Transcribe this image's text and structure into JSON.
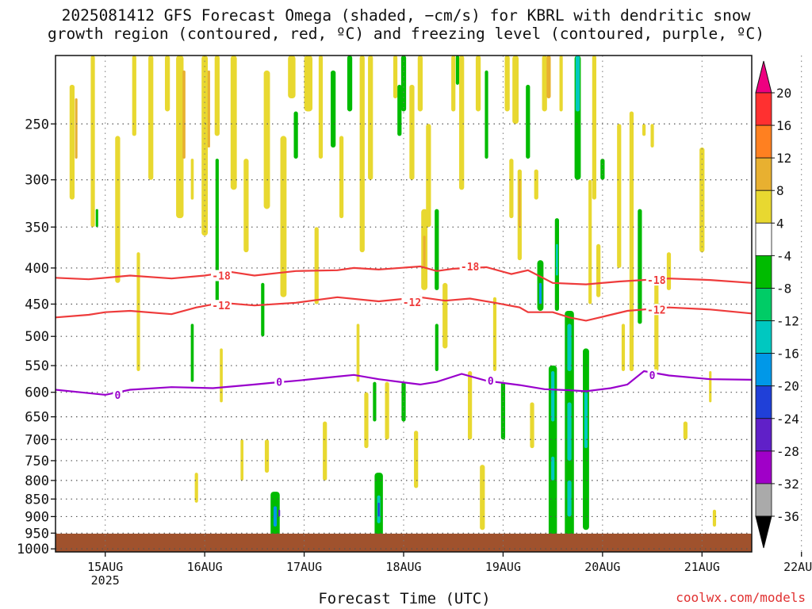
{
  "title_line1": "2025081412 GFS Forecast Omega (shaded, −cm/s) for KBRL with dendritic snow",
  "title_line2": "growth region (contoured, red, ºC) and freezing level (contoured, purple, ºC)",
  "credit": "coolwx.com/models",
  "chart_data": {
    "type": "heatmap",
    "title": "2025081412 GFS Forecast Omega (shaded, −cm/s) for KBRL with dendritic snow growth region (contoured, red, ºC) and freezing level (contoured, purple, ºC)",
    "xlabel": "Forecast Time (UTC)",
    "ylabel": "",
    "x_ticks": [
      "15AUG",
      "16AUG",
      "17AUG",
      "18AUG",
      "19AUG",
      "20AUG",
      "21AUG",
      "22AUG"
    ],
    "x_tick_sublabel": "2025",
    "x_range_hours": [
      12,
      180
    ],
    "y_ticks": [
      250,
      300,
      350,
      400,
      450,
      500,
      550,
      600,
      650,
      700,
      750,
      800,
      850,
      900,
      950,
      1000
    ],
    "y_range_hPa": [
      200,
      1010
    ],
    "y_scale": "log",
    "grid": true,
    "colorbar": {
      "labels": [
        20,
        16,
        12,
        8,
        4,
        -4,
        -8,
        -12,
        -16,
        -20,
        -24,
        -28,
        -32,
        -36
      ],
      "colors": [
        "#ee0080",
        "#ff3030",
        "#ff8020",
        "#e8b030",
        "#e8d830",
        "#ffffff",
        "#00bb00",
        "#00cc66",
        "#00c8c0",
        "#0098e8",
        "#2040d8",
        "#6020c8",
        "#a000c8",
        "#aaaaaa",
        "#000000"
      ]
    },
    "contour_lines": [
      {
        "label": "-18",
        "color": "#ee3b3b",
        "x": [
          12,
          20,
          30,
          40,
          48,
          54,
          60,
          70,
          80,
          84,
          90,
          100,
          104,
          108,
          116,
          122,
          126,
          132,
          140,
          148,
          160,
          170,
          180
        ],
        "y": [
          413,
          415,
          410,
          414,
          410,
          405,
          410,
          404,
          403,
          400,
          402,
          398,
          404,
          401,
          399,
          408,
          403,
          420,
          422,
          418,
          414,
          416,
          420
        ]
      },
      {
        "label": "-12",
        "color": "#ee3b3b",
        "x": [
          12,
          20,
          24,
          30,
          40,
          46,
          52,
          60,
          70,
          80,
          90,
          100,
          106,
          112,
          118,
          124,
          126,
          132,
          136,
          140,
          150,
          160,
          170,
          180
        ],
        "y": [
          470,
          466,
          462,
          460,
          465,
          455,
          448,
          452,
          448,
          440,
          446,
          440,
          445,
          442,
          448,
          455,
          462,
          462,
          470,
          475,
          460,
          455,
          458,
          464
        ]
      },
      {
        "label": "0",
        "color": "#9900cc",
        "x": [
          12,
          18,
          24,
          30,
          40,
          50,
          60,
          64,
          70,
          80,
          84,
          90,
          100,
          104,
          110,
          116,
          120,
          124,
          130,
          136,
          140,
          146,
          150,
          154,
          160,
          170,
          180
        ],
        "y": [
          595,
          600,
          605,
          595,
          590,
          592,
          585,
          582,
          578,
          570,
          567,
          575,
          585,
          580,
          565,
          578,
          582,
          586,
          594,
          596,
          598,
          592,
          585,
          560,
          568,
          575,
          576
        ]
      }
    ],
    "contour_labels": [
      {
        "text": "-18",
        "x": 52,
        "y": 410
      },
      {
        "text": "-18",
        "x": 112,
        "y": 398
      },
      {
        "text": "-18",
        "x": 157,
        "y": 416
      },
      {
        "text": "-12",
        "x": 52,
        "y": 452
      },
      {
        "text": "-12",
        "x": 98,
        "y": 447
      },
      {
        "text": "-12",
        "x": 157,
        "y": 458
      },
      {
        "text": "0",
        "x": 27,
        "y": 605
      },
      {
        "text": "0",
        "x": 66,
        "y": 580
      },
      {
        "text": "0",
        "x": 117,
        "y": 578
      },
      {
        "text": "0",
        "x": 156,
        "y": 567
      }
    ],
    "omega_cells": [
      {
        "x": 16,
        "p0": 220,
        "p1": 320,
        "w": 1.2,
        "v": 5
      },
      {
        "x": 17,
        "p0": 230,
        "p1": 280,
        "w": 0.6,
        "v": 9
      },
      {
        "x": 21,
        "p0": 200,
        "p1": 350,
        "w": 1.0,
        "v": 5
      },
      {
        "x": 22,
        "p0": 330,
        "p1": 350,
        "w": 0.6,
        "v": -6
      },
      {
        "x": 27,
        "p0": 260,
        "p1": 420,
        "w": 1.2,
        "v": 5
      },
      {
        "x": 31,
        "p0": 200,
        "p1": 260,
        "w": 1.0,
        "v": 5
      },
      {
        "x": 32,
        "p0": 380,
        "p1": 560,
        "w": 0.8,
        "v": 5
      },
      {
        "x": 35,
        "p0": 200,
        "p1": 300,
        "w": 1.2,
        "v": 5
      },
      {
        "x": 39,
        "p0": 200,
        "p1": 240,
        "w": 1.2,
        "v": 6
      },
      {
        "x": 42,
        "p0": 200,
        "p1": 340,
        "w": 1.8,
        "v": 6
      },
      {
        "x": 43,
        "p0": 210,
        "p1": 280,
        "w": 0.7,
        "v": 10
      },
      {
        "x": 45,
        "p0": 280,
        "p1": 320,
        "w": 0.7,
        "v": 5
      },
      {
        "x": 45,
        "p0": 480,
        "p1": 580,
        "w": 0.7,
        "v": -6
      },
      {
        "x": 46,
        "p0": 780,
        "p1": 860,
        "w": 0.8,
        "v": 5
      },
      {
        "x": 48,
        "p0": 200,
        "p1": 360,
        "w": 1.5,
        "v": 6
      },
      {
        "x": 49,
        "p0": 210,
        "p1": 270,
        "w": 0.6,
        "v": 10
      },
      {
        "x": 51,
        "p0": 200,
        "p1": 260,
        "w": 1.2,
        "v": 5
      },
      {
        "x": 51,
        "p0": 280,
        "p1": 450,
        "w": 0.8,
        "v": -6
      },
      {
        "x": 52,
        "p0": 520,
        "p1": 620,
        "w": 0.7,
        "v": 5
      },
      {
        "x": 55,
        "p0": 200,
        "p1": 310,
        "w": 1.5,
        "v": 5
      },
      {
        "x": 57,
        "p0": 700,
        "p1": 800,
        "w": 0.7,
        "v": 5
      },
      {
        "x": 58,
        "p0": 280,
        "p1": 380,
        "w": 1.2,
        "v": 5
      },
      {
        "x": 62,
        "p0": 420,
        "p1": 500,
        "w": 0.8,
        "v": -6
      },
      {
        "x": 63,
        "p0": 210,
        "p1": 330,
        "w": 1.5,
        "v": 5
      },
      {
        "x": 63,
        "p0": 700,
        "p1": 780,
        "w": 1.0,
        "v": 5
      },
      {
        "x": 65,
        "p0": 830,
        "p1": 960,
        "w": 2.2,
        "v": -7
      },
      {
        "x": 65,
        "p0": 870,
        "p1": 930,
        "w": 0.8,
        "v": -16
      },
      {
        "x": 66,
        "p0": 880,
        "p1": 900,
        "w": 0.4,
        "v": -25
      },
      {
        "x": 67,
        "p0": 260,
        "p1": 440,
        "w": 1.5,
        "v": 5
      },
      {
        "x": 69,
        "p0": 200,
        "p1": 230,
        "w": 1.8,
        "v": 6
      },
      {
        "x": 70,
        "p0": 240,
        "p1": 280,
        "w": 1.0,
        "v": -6
      },
      {
        "x": 73,
        "p0": 200,
        "p1": 240,
        "w": 2.0,
        "v": 5
      },
      {
        "x": 75,
        "p0": 350,
        "p1": 450,
        "w": 1.0,
        "v": 5
      },
      {
        "x": 76,
        "p0": 200,
        "p1": 280,
        "w": 1.0,
        "v": 5
      },
      {
        "x": 77,
        "p0": 660,
        "p1": 800,
        "w": 1.0,
        "v": 5
      },
      {
        "x": 79,
        "p0": 210,
        "p1": 270,
        "w": 1.2,
        "v": -6
      },
      {
        "x": 81,
        "p0": 260,
        "p1": 340,
        "w": 1.0,
        "v": 5
      },
      {
        "x": 83,
        "p0": 200,
        "p1": 240,
        "w": 1.2,
        "v": -6
      },
      {
        "x": 85,
        "p0": 480,
        "p1": 580,
        "w": 0.7,
        "v": 5
      },
      {
        "x": 86,
        "p0": 200,
        "p1": 380,
        "w": 1.2,
        "v": 5
      },
      {
        "x": 87,
        "p0": 600,
        "p1": 720,
        "w": 1.0,
        "v": 5
      },
      {
        "x": 88,
        "p0": 200,
        "p1": 300,
        "w": 1.2,
        "v": 6
      },
      {
        "x": 89,
        "p0": 580,
        "p1": 660,
        "w": 0.8,
        "v": -6
      },
      {
        "x": 90,
        "p0": 780,
        "p1": 960,
        "w": 2.0,
        "v": -7
      },
      {
        "x": 90,
        "p0": 840,
        "p1": 920,
        "w": 0.8,
        "v": -14
      },
      {
        "x": 90,
        "p0": 860,
        "p1": 900,
        "w": 0.4,
        "v": -22
      },
      {
        "x": 92,
        "p0": 580,
        "p1": 700,
        "w": 1.0,
        "v": 5
      },
      {
        "x": 94,
        "p0": 200,
        "p1": 230,
        "w": 1.0,
        "v": 5
      },
      {
        "x": 95,
        "p0": 220,
        "p1": 260,
        "w": 1.0,
        "v": -6
      },
      {
        "x": 96,
        "p0": 200,
        "p1": 240,
        "w": 1.2,
        "v": -6
      },
      {
        "x": 96,
        "p0": 580,
        "p1": 660,
        "w": 1.0,
        "v": -6
      },
      {
        "x": 98,
        "p0": 220,
        "p1": 300,
        "w": 1.2,
        "v": 5
      },
      {
        "x": 99,
        "p0": 680,
        "p1": 820,
        "w": 1.0,
        "v": 5
      },
      {
        "x": 100,
        "p0": 200,
        "p1": 240,
        "w": 1.2,
        "v": 6
      },
      {
        "x": 101,
        "p0": 330,
        "p1": 430,
        "w": 1.5,
        "v": 6
      },
      {
        "x": 101,
        "p0": 360,
        "p1": 400,
        "w": 0.6,
        "v": 10
      },
      {
        "x": 102,
        "p0": 250,
        "p1": 350,
        "w": 1.2,
        "v": 5
      },
      {
        "x": 104,
        "p0": 330,
        "p1": 430,
        "w": 1.0,
        "v": -6
      },
      {
        "x": 104,
        "p0": 480,
        "p1": 560,
        "w": 0.8,
        "v": -6
      },
      {
        "x": 106,
        "p0": 420,
        "p1": 520,
        "w": 1.2,
        "v": 5
      },
      {
        "x": 108,
        "p0": 200,
        "p1": 240,
        "w": 1.0,
        "v": 6
      },
      {
        "x": 109,
        "p0": 200,
        "p1": 220,
        "w": 0.8,
        "v": -6
      },
      {
        "x": 110,
        "p0": 200,
        "p1": 310,
        "w": 1.2,
        "v": 6
      },
      {
        "x": 112,
        "p0": 560,
        "p1": 700,
        "w": 1.0,
        "v": 5
      },
      {
        "x": 114,
        "p0": 200,
        "p1": 240,
        "w": 1.2,
        "v": 5
      },
      {
        "x": 115,
        "p0": 760,
        "p1": 940,
        "w": 1.2,
        "v": 5
      },
      {
        "x": 116,
        "p0": 210,
        "p1": 280,
        "w": 0.8,
        "v": -6
      },
      {
        "x": 118,
        "p0": 440,
        "p1": 560,
        "w": 0.8,
        "v": 5
      },
      {
        "x": 120,
        "p0": 580,
        "p1": 700,
        "w": 1.0,
        "v": -6
      },
      {
        "x": 121,
        "p0": 200,
        "p1": 240,
        "w": 1.2,
        "v": 5
      },
      {
        "x": 122,
        "p0": 280,
        "p1": 340,
        "w": 1.0,
        "v": 5
      },
      {
        "x": 123,
        "p0": 200,
        "p1": 250,
        "w": 1.5,
        "v": 6
      },
      {
        "x": 124,
        "p0": 290,
        "p1": 390,
        "w": 1.0,
        "v": 6
      },
      {
        "x": 124,
        "p0": 300,
        "p1": 350,
        "w": 0.5,
        "v": 10
      },
      {
        "x": 126,
        "p0": 220,
        "p1": 280,
        "w": 1.0,
        "v": -6
      },
      {
        "x": 127,
        "p0": 620,
        "p1": 720,
        "w": 1.0,
        "v": 5
      },
      {
        "x": 128,
        "p0": 290,
        "p1": 320,
        "w": 1.0,
        "v": 5
      },
      {
        "x": 129,
        "p0": 390,
        "p1": 460,
        "w": 1.5,
        "v": -7
      },
      {
        "x": 129,
        "p0": 420,
        "p1": 450,
        "w": 0.6,
        "v": -16
      },
      {
        "x": 130,
        "p0": 200,
        "p1": 240,
        "w": 1.2,
        "v": 6
      },
      {
        "x": 131,
        "p0": 200,
        "p1": 230,
        "w": 1.0,
        "v": 10
      },
      {
        "x": 132,
        "p0": 550,
        "p1": 960,
        "w": 2.0,
        "v": -7
      },
      {
        "x": 132,
        "p0": 560,
        "p1": 660,
        "w": 0.8,
        "v": -14
      },
      {
        "x": 132,
        "p0": 740,
        "p1": 800,
        "w": 0.8,
        "v": -14
      },
      {
        "x": 133,
        "p0": 340,
        "p1": 460,
        "w": 1.0,
        "v": -6
      },
      {
        "x": 133,
        "p0": 370,
        "p1": 410,
        "w": 0.5,
        "v": -14
      },
      {
        "x": 134,
        "p0": 200,
        "p1": 240,
        "w": 0.8,
        "v": 5
      },
      {
        "x": 136,
        "p0": 460,
        "p1": 960,
        "w": 2.2,
        "v": -7
      },
      {
        "x": 136,
        "p0": 480,
        "p1": 560,
        "w": 1.0,
        "v": -14
      },
      {
        "x": 136,
        "p0": 620,
        "p1": 750,
        "w": 1.0,
        "v": -14
      },
      {
        "x": 136,
        "p0": 800,
        "p1": 900,
        "w": 1.0,
        "v": -14
      },
      {
        "x": 138,
        "p0": 200,
        "p1": 300,
        "w": 1.5,
        "v": -7
      },
      {
        "x": 138,
        "p0": 200,
        "p1": 240,
        "w": 1.0,
        "v": -13
      },
      {
        "x": 140,
        "p0": 520,
        "p1": 940,
        "w": 1.5,
        "v": -7
      },
      {
        "x": 140,
        "p0": 600,
        "p1": 720,
        "w": 0.8,
        "v": -14
      },
      {
        "x": 141,
        "p0": 300,
        "p1": 450,
        "w": 0.8,
        "v": 5
      },
      {
        "x": 142,
        "p0": 200,
        "p1": 320,
        "w": 1.0,
        "v": 5
      },
      {
        "x": 143,
        "p0": 370,
        "p1": 440,
        "w": 1.0,
        "v": 5
      },
      {
        "x": 144,
        "p0": 280,
        "p1": 300,
        "w": 1.0,
        "v": -6
      },
      {
        "x": 148,
        "p0": 250,
        "p1": 400,
        "w": 1.0,
        "v": 5
      },
      {
        "x": 149,
        "p0": 480,
        "p1": 560,
        "w": 0.8,
        "v": 5
      },
      {
        "x": 151,
        "p0": 240,
        "p1": 560,
        "w": 1.0,
        "v": 5
      },
      {
        "x": 153,
        "p0": 330,
        "p1": 480,
        "w": 1.0,
        "v": -6
      },
      {
        "x": 154,
        "p0": 250,
        "p1": 260,
        "w": 0.8,
        "v": 5
      },
      {
        "x": 156,
        "p0": 250,
        "p1": 270,
        "w": 0.8,
        "v": 5
      },
      {
        "x": 157,
        "p0": 420,
        "p1": 560,
        "w": 1.0,
        "v": 5
      },
      {
        "x": 160,
        "p0": 380,
        "p1": 430,
        "w": 1.0,
        "v": 5
      },
      {
        "x": 164,
        "p0": 660,
        "p1": 700,
        "w": 1.0,
        "v": 5
      },
      {
        "x": 168,
        "p0": 270,
        "p1": 380,
        "w": 1.2,
        "v": 5
      },
      {
        "x": 170,
        "p0": 560,
        "p1": 620,
        "w": 0.6,
        "v": 5
      },
      {
        "x": 171,
        "p0": 880,
        "p1": 930,
        "w": 0.8,
        "v": 5
      }
    ]
  }
}
